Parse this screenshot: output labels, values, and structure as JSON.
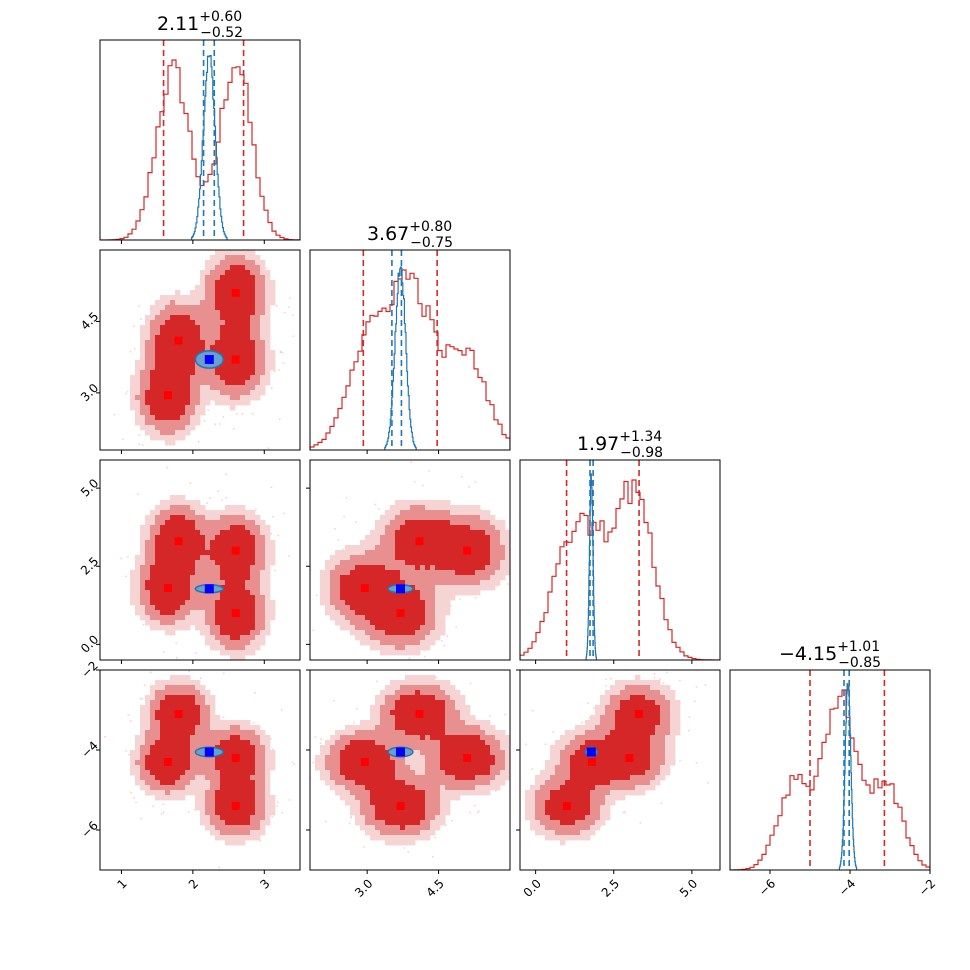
{
  "chart_data": {
    "type": "corner",
    "colors": {
      "posterior": "#d62728",
      "posterior_fill_inner": "#d62728",
      "posterior_fill_mid": "#e8908f",
      "posterior_fill_outer": "#f7d4d4",
      "comparison": "#1f77b4",
      "truth_modes": "#ff0000",
      "reference": "#0000ff"
    },
    "parameters": [
      {
        "id": "p0",
        "range": [
          0.7,
          3.5
        ],
        "ticks": [
          {
            "value": 1,
            "label": "1"
          },
          {
            "value": 2,
            "label": "2"
          },
          {
            "value": 3,
            "label": "3"
          }
        ]
      },
      {
        "id": "p1",
        "range": [
          1.8,
          6.0
        ],
        "ticks": [
          {
            "value": 3.0,
            "label": "3.0"
          },
          {
            "value": 4.5,
            "label": "4.5"
          }
        ]
      },
      {
        "id": "p2",
        "range": [
          -0.5,
          5.9
        ],
        "ticks": [
          {
            "value": 0.0,
            "label": "0.0"
          },
          {
            "value": 2.5,
            "label": "2.5"
          },
          {
            "value": 5.0,
            "label": "5.0"
          }
        ]
      },
      {
        "id": "p3",
        "range": [
          -7.0,
          -2.0
        ],
        "ticks": [
          {
            "value": -6,
            "label": "−6"
          },
          {
            "value": -4,
            "label": "−4"
          },
          {
            "value": -2,
            "label": "−2"
          }
        ]
      }
    ],
    "titles": [
      {
        "median": "2.11",
        "plus": "+0.60",
        "minus": "−0.52"
      },
      {
        "median": "3.67",
        "plus": "+0.80",
        "minus": "−0.75"
      },
      {
        "median": "1.97",
        "plus": "+1.34",
        "minus": "−0.98"
      },
      {
        "median": "−4.15",
        "plus": "+1.01",
        "minus": "−0.85"
      }
    ],
    "quantiles_posterior": [
      [
        1.59,
        2.71
      ],
      [
        2.92,
        4.47
      ],
      [
        0.99,
        3.31
      ],
      [
        -5.0,
        -3.14
      ]
    ],
    "quantiles_comparison": [
      [
        2.15,
        2.3
      ],
      [
        3.52,
        3.72
      ],
      [
        1.74,
        1.84
      ],
      [
        -4.15,
        -4.02
      ]
    ],
    "truth_modes": [
      {
        "p0": 1.8,
        "p1": 4.1,
        "p2": 3.3,
        "p3": -3.1
      },
      {
        "p0": 2.6,
        "p1": 5.1,
        "p2": 3.0,
        "p3": -4.2
      },
      {
        "p0": 1.65,
        "p1": 2.95,
        "p2": 1.8,
        "p3": -4.3
      },
      {
        "p0": 2.6,
        "p1": 3.7,
        "p2": 1.0,
        "p3": -5.4
      }
    ],
    "reference_point": {
      "p0": 2.23,
      "p1": 3.7,
      "p2": 1.78,
      "p3": -4.05
    }
  }
}
